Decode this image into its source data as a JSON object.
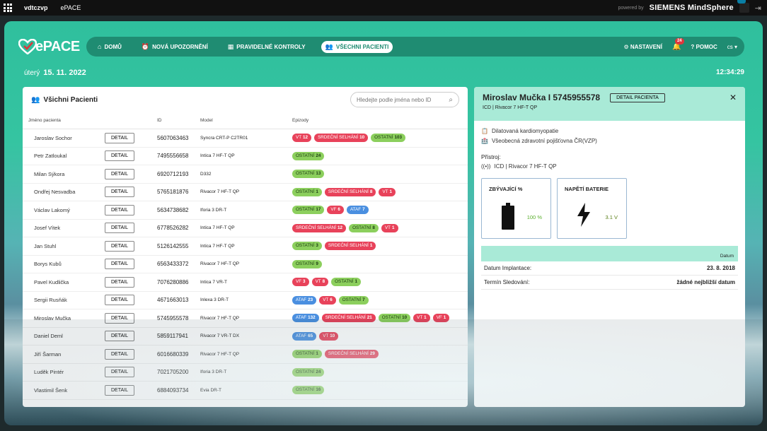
{
  "sysbar": {
    "tenant": "vdtczvp",
    "app": "ePACE",
    "powered": "powered by",
    "brand": "SIEMENS MindSphere"
  },
  "nav": {
    "logo": "PACE",
    "items": [
      {
        "label": "DOMŮ",
        "icon": "home-icon"
      },
      {
        "label": "NOVÁ UPOZORNĚNÍ",
        "icon": "alarm-icon"
      },
      {
        "label": "PRAVIDELNÉ KONTROLY",
        "icon": "calendar-icon"
      },
      {
        "label": "VŠECHNI PACIENTI",
        "icon": "people-icon"
      }
    ],
    "settings": "NASTAVENÍ",
    "badge": "24",
    "help": "POMOC",
    "lang": "cs"
  },
  "date": {
    "day": "úterý",
    "date": "15. 11. 2022",
    "time": "12:34:29"
  },
  "patients": {
    "title": "Všichni Pacienti",
    "search_placeholder": "Hledejte podle jména nebo ID",
    "headers": {
      "name": "Jméno pacienta",
      "id": "ID",
      "model": "Model",
      "episodes": "Epizody"
    },
    "detail_label": "DETAIL",
    "rows": [
      {
        "name": "Jaroslav Sochor",
        "id": "5607063463",
        "model": "Syncra CRT-P C2TR01",
        "episodes": [
          {
            "t": "VT",
            "n": "12",
            "c": "red"
          },
          {
            "t": "SRDEČNÍ SELHÁNÍ",
            "n": "10",
            "c": "red"
          },
          {
            "t": "OSTATNÍ",
            "n": "103",
            "c": "green"
          }
        ]
      },
      {
        "name": "Petr Zatloukal",
        "id": "7495556658",
        "model": "Intica 7 HF-T QP",
        "episodes": [
          {
            "t": "OSTATNÍ",
            "n": "24",
            "c": "green"
          }
        ]
      },
      {
        "name": "Milan Sýkora",
        "id": "6920712193",
        "model": "D332",
        "episodes": [
          {
            "t": "OSTATNÍ",
            "n": "13",
            "c": "green"
          }
        ]
      },
      {
        "name": "Ondřej Nesvadba",
        "id": "5765181876",
        "model": "Rivacor 7 HF-T QP",
        "episodes": [
          {
            "t": "OSTATNÍ",
            "n": "1",
            "c": "green"
          },
          {
            "t": "SRDEČNÍ SELHÁNÍ",
            "n": "8",
            "c": "red"
          },
          {
            "t": "VT",
            "n": "1",
            "c": "red"
          }
        ]
      },
      {
        "name": "Václav Lakomý",
        "id": "5634738682",
        "model": "Iforia 3 DR-T",
        "episodes": [
          {
            "t": "OSTATNÍ",
            "n": "17",
            "c": "green"
          },
          {
            "t": "VF",
            "n": "6",
            "c": "red"
          },
          {
            "t": "ATAF",
            "n": "7",
            "c": "blue"
          }
        ]
      },
      {
        "name": "Josef Vítek",
        "id": "6778526282",
        "model": "Intica 7 HF-T QP",
        "episodes": [
          {
            "t": "SRDEČNÍ SELHÁNÍ",
            "n": "12",
            "c": "red"
          },
          {
            "t": "OSTATNÍ",
            "n": "8",
            "c": "green"
          },
          {
            "t": "VT",
            "n": "1",
            "c": "red"
          }
        ]
      },
      {
        "name": "Jan Stuhl",
        "id": "5126142555",
        "model": "Intica 7 HF-T QP",
        "episodes": [
          {
            "t": "OSTATNÍ",
            "n": "3",
            "c": "green"
          },
          {
            "t": "SRDEČNÍ SELHÁNÍ",
            "n": "1",
            "c": "red"
          }
        ]
      },
      {
        "name": "Borys Kubů",
        "id": "6563433372",
        "model": "Rivacor 7 HF-T QP",
        "episodes": [
          {
            "t": "OSTATNÍ",
            "n": "9",
            "c": "green"
          }
        ]
      },
      {
        "name": "Pavel Kudlička",
        "id": "7076280886",
        "model": "Intica 7 VR-T",
        "episodes": [
          {
            "t": "VF",
            "n": "3",
            "c": "red"
          },
          {
            "t": "VT",
            "n": "8",
            "c": "red"
          },
          {
            "t": "OSTATNÍ",
            "n": "1",
            "c": "green"
          }
        ]
      },
      {
        "name": "Sergii Rusňák",
        "id": "4671663013",
        "model": "Inlexa 3 DR-T",
        "episodes": [
          {
            "t": "ATAF",
            "n": "23",
            "c": "blue"
          },
          {
            "t": "VT",
            "n": "6",
            "c": "red"
          },
          {
            "t": "OSTATNÍ",
            "n": "7",
            "c": "green"
          }
        ]
      },
      {
        "name": "Miroslav Mučka",
        "id": "5745955578",
        "model": "Rivacor 7 HF-T QP",
        "episodes": [
          {
            "t": "ATAF",
            "n": "132",
            "c": "blue"
          },
          {
            "t": "SRDEČNÍ SELHÁNÍ",
            "n": "21",
            "c": "red"
          },
          {
            "t": "OSTATNÍ",
            "n": "10",
            "c": "green"
          },
          {
            "t": "VT",
            "n": "1",
            "c": "red"
          },
          {
            "t": "VF",
            "n": "1",
            "c": "red"
          }
        ]
      },
      {
        "name": "Daniel Deml",
        "id": "5859117941",
        "model": "Rivacor 7 VR-T DX",
        "episodes": [
          {
            "t": "ATAF",
            "n": "65",
            "c": "blue"
          },
          {
            "t": "VT",
            "n": "10",
            "c": "red"
          }
        ]
      },
      {
        "name": "Jiří Šarman",
        "id": "6016680339",
        "model": "Rivacor 7 HF-T QP",
        "episodes": [
          {
            "t": "OSTATNÍ",
            "n": "1",
            "c": "green"
          },
          {
            "t": "SRDEČNÍ SELHÁNÍ",
            "n": "29",
            "c": "red"
          }
        ]
      },
      {
        "name": "Luděk Pintér",
        "id": "7021705200",
        "model": "Iforia 3 DR-T",
        "episodes": [
          {
            "t": "OSTATNÍ",
            "n": "24",
            "c": "green"
          }
        ]
      },
      {
        "name": "Vlastimil Šenk",
        "id": "6884093734",
        "model": "Evia DR-T",
        "episodes": [
          {
            "t": "OSTATNÍ",
            "n": "16",
            "c": "green"
          }
        ]
      }
    ]
  },
  "detail": {
    "name": "Miroslav Mučka I 5745955578",
    "button": "DETAIL PACIENTA",
    "sub": "ICD | Rivacor 7 HF-T QP",
    "diagnosis": "Dilatovaná kardiomyopatie",
    "insurance": "Všeobecná zdravotní pojišťovna ČR(VZP)",
    "device_label": "Přístroj:",
    "device": "ICD | Rivacor 7 HF-T QP",
    "remaining_title": "ZBÝVAJÍCÍ %",
    "remaining_value": "100 %",
    "battery_title": "NAPĚTÍ BATERIE",
    "battery_value": "3.1 V",
    "date_header": "Datum",
    "implant_label": "Datum Implantace:",
    "implant_value": "23. 8. 2018",
    "followup_label": "Termín Sledování:",
    "followup_value": "žádné nejbližší datum"
  }
}
